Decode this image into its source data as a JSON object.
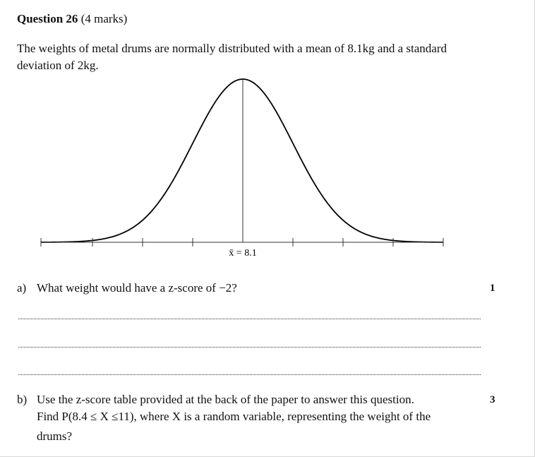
{
  "question": {
    "heading": "Question 26",
    "marks_text": "(4 marks)",
    "stem_line1": "The weights of metal drums are normally distributed with a mean of 8.1kg and a standard",
    "stem_line2": "deviation of 2kg."
  },
  "graph": {
    "mean_label": "x̄ = 8.1",
    "mean": 8.1,
    "sd": 2
  },
  "part_a": {
    "label": "a)",
    "text": "What weight would have a z-score of −2?",
    "marks": "1"
  },
  "part_b": {
    "label": "b)",
    "line1": "Use the z-score table provided at the back of the paper to answer this question.",
    "line2": "Find P(8.4 ≤ X ≤11), where X is a random variable, representing the weight of the",
    "line3": "drums?",
    "marks": "3"
  }
}
